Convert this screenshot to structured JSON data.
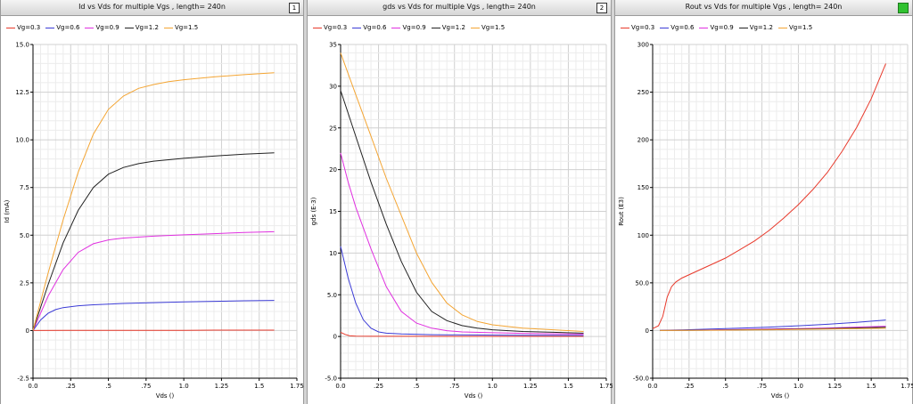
{
  "panels": [
    {
      "title": "Id vs Vds for multiple Vgs , length=  240n",
      "badge": "1",
      "badge_color": "white"
    },
    {
      "title": "gds vs Vds for multiple Vgs , length=  240n",
      "badge": "2",
      "badge_color": "white"
    },
    {
      "title": "Rout vs Vds for multiple Vgs , length=  240n",
      "badge": "",
      "badge_color": "green"
    }
  ],
  "legend_colors": {
    "Vg=0.3": "#e8392b",
    "Vg=0.6": "#3b3bd6",
    "Vg=0.9": "#e030e0",
    "Vg=1.2": "#222222",
    "Vg=1.5": "#f4a533"
  },
  "chart_data": [
    {
      "type": "line",
      "title": "Id vs Vds for multiple Vgs , length=  240n",
      "xlabel": "Vds ()",
      "ylabel": "Id (mA)",
      "xlim": [
        0,
        1.75
      ],
      "ylim": [
        -2.5,
        15.0
      ],
      "xticks": [
        0,
        0.25,
        0.5,
        0.75,
        1.0,
        1.25,
        1.5,
        1.75
      ],
      "xtick_labels": [
        "0.0",
        ".25",
        ".5",
        ".75",
        "1.0",
        "1.25",
        "1.5",
        "1.75"
      ],
      "yticks": [
        -2.5,
        0,
        2.5,
        5.0,
        7.5,
        10.0,
        12.5,
        15.0
      ],
      "ytick_labels": [
        "-2.5",
        "0",
        "2.5",
        "5.0",
        "7.5",
        "10.0",
        "12.5",
        "15.0"
      ],
      "grid": true,
      "legend_position": "top-left",
      "series": [
        {
          "name": "Vg=0.3",
          "color": "#e8392b",
          "x": [
            0,
            0.2,
            0.4,
            0.6,
            0.8,
            1.0,
            1.2,
            1.4,
            1.6
          ],
          "y": [
            0,
            0.01,
            0.01,
            0.01,
            0.01,
            0.01,
            0.02,
            0.02,
            0.02
          ]
        },
        {
          "name": "Vg=0.6",
          "color": "#3b3bd6",
          "x": [
            0,
            0.05,
            0.1,
            0.15,
            0.2,
            0.3,
            0.4,
            0.6,
            0.8,
            1.0,
            1.2,
            1.4,
            1.6
          ],
          "y": [
            0,
            0.55,
            0.9,
            1.1,
            1.2,
            1.3,
            1.35,
            1.42,
            1.46,
            1.5,
            1.53,
            1.56,
            1.58
          ]
        },
        {
          "name": "Vg=0.9",
          "color": "#e030e0",
          "x": [
            0,
            0.1,
            0.2,
            0.3,
            0.4,
            0.5,
            0.6,
            0.8,
            1.0,
            1.2,
            1.4,
            1.6
          ],
          "y": [
            0,
            1.8,
            3.2,
            4.1,
            4.55,
            4.75,
            4.85,
            4.95,
            5.02,
            5.08,
            5.14,
            5.18
          ]
        },
        {
          "name": "Vg=1.2",
          "color": "#222222",
          "x": [
            0,
            0.1,
            0.2,
            0.3,
            0.4,
            0.5,
            0.6,
            0.7,
            0.8,
            1.0,
            1.2,
            1.4,
            1.6
          ],
          "y": [
            0,
            2.4,
            4.6,
            6.3,
            7.5,
            8.2,
            8.55,
            8.75,
            8.88,
            9.03,
            9.15,
            9.25,
            9.32
          ]
        },
        {
          "name": "Vg=1.5",
          "color": "#f4a533",
          "x": [
            0,
            0.1,
            0.2,
            0.3,
            0.4,
            0.5,
            0.6,
            0.7,
            0.8,
            0.9,
            1.0,
            1.2,
            1.4,
            1.6
          ],
          "y": [
            0,
            3.0,
            5.8,
            8.3,
            10.3,
            11.6,
            12.3,
            12.7,
            12.9,
            13.05,
            13.15,
            13.3,
            13.42,
            13.52
          ]
        }
      ]
    },
    {
      "type": "line",
      "title": "gds vs Vds for multiple Vgs , length=  240n",
      "xlabel": "Vds ()",
      "ylabel": "gds (E-3)",
      "xlim": [
        0,
        1.75
      ],
      "ylim": [
        -5.0,
        35
      ],
      "xticks": [
        0,
        0.25,
        0.5,
        0.75,
        1.0,
        1.25,
        1.5,
        1.75
      ],
      "xtick_labels": [
        "0.0",
        ".25",
        ".5",
        ".75",
        "1.0",
        "1.25",
        "1.5",
        "1.75"
      ],
      "yticks": [
        -5.0,
        0,
        5.0,
        10,
        15,
        20,
        25,
        30,
        35
      ],
      "ytick_labels": [
        "-5.0",
        "0",
        "5.0",
        "10",
        "15",
        "20",
        "25",
        "30",
        "35"
      ],
      "grid": true,
      "legend_position": "top-left",
      "series": [
        {
          "name": "Vg=0.3",
          "color": "#e8392b",
          "x": [
            0,
            0.03,
            0.06,
            0.1,
            0.2,
            0.4,
            0.8,
            1.2,
            1.6
          ],
          "y": [
            0.5,
            0.25,
            0.08,
            0.03,
            0.02,
            0.02,
            0.01,
            0.01,
            0.01
          ]
        },
        {
          "name": "Vg=0.6",
          "color": "#3b3bd6",
          "x": [
            0,
            0.05,
            0.1,
            0.15,
            0.2,
            0.25,
            0.3,
            0.4,
            0.6,
            0.8,
            1.2,
            1.6
          ],
          "y": [
            10.8,
            7.0,
            4.0,
            2.0,
            1.0,
            0.55,
            0.4,
            0.3,
            0.22,
            0.18,
            0.15,
            0.12
          ]
        },
        {
          "name": "Vg=0.9",
          "color": "#e030e0",
          "x": [
            0,
            0.05,
            0.1,
            0.2,
            0.3,
            0.4,
            0.5,
            0.6,
            0.7,
            0.8,
            1.0,
            1.2,
            1.4,
            1.6
          ],
          "y": [
            22.0,
            18.5,
            15.5,
            10.5,
            6.0,
            3.0,
            1.6,
            1.0,
            0.7,
            0.55,
            0.45,
            0.38,
            0.32,
            0.28
          ]
        },
        {
          "name": "Vg=1.2",
          "color": "#222222",
          "x": [
            0,
            0.1,
            0.2,
            0.3,
            0.4,
            0.5,
            0.6,
            0.7,
            0.8,
            0.9,
            1.0,
            1.2,
            1.4,
            1.6
          ],
          "y": [
            29.5,
            24.0,
            18.5,
            13.5,
            9.0,
            5.3,
            3.0,
            1.9,
            1.3,
            1.0,
            0.8,
            0.6,
            0.5,
            0.4
          ]
        },
        {
          "name": "Vg=1.5",
          "color": "#f4a533",
          "x": [
            0,
            0.1,
            0.2,
            0.3,
            0.4,
            0.5,
            0.6,
            0.7,
            0.8,
            0.9,
            1.0,
            1.2,
            1.4,
            1.6
          ],
          "y": [
            34.0,
            29.0,
            24.0,
            19.0,
            14.5,
            10.0,
            6.5,
            4.0,
            2.6,
            1.8,
            1.4,
            1.0,
            0.8,
            0.6
          ]
        }
      ]
    },
    {
      "type": "line",
      "title": "Rout vs Vds for multiple Vgs , length=  240n",
      "xlabel": "Vds ()",
      "ylabel": "Rout (E3)",
      "xlim": [
        0,
        1.75
      ],
      "ylim": [
        -50.0,
        300
      ],
      "xticks": [
        0,
        0.25,
        0.5,
        0.75,
        1.0,
        1.25,
        1.5,
        1.75
      ],
      "xtick_labels": [
        "0.0",
        ".25",
        ".5",
        ".75",
        "1.0",
        "1.25",
        "1.5",
        "1.75"
      ],
      "yticks": [
        -50.0,
        0,
        50.0,
        100,
        150,
        200,
        250,
        300
      ],
      "ytick_labels": [
        "-50.0",
        "0",
        "50.0",
        "100",
        "150",
        "200",
        "250",
        "300"
      ],
      "grid": true,
      "legend_position": "top-left",
      "series": [
        {
          "name": "Vg=0.3",
          "color": "#e8392b",
          "x": [
            0,
            0.04,
            0.07,
            0.1,
            0.13,
            0.16,
            0.2,
            0.3,
            0.4,
            0.5,
            0.6,
            0.7,
            0.8,
            0.9,
            1.0,
            1.1,
            1.2,
            1.3,
            1.4,
            1.5,
            1.6
          ],
          "y": [
            2,
            5,
            15,
            35,
            46,
            51,
            55,
            62,
            69,
            76,
            85,
            94,
            105,
            118,
            132,
            148,
            166,
            188,
            213,
            243,
            280
          ]
        },
        {
          "name": "Vg=0.6",
          "color": "#3b3bd6",
          "x": [
            0.05,
            0.2,
            0.4,
            0.6,
            0.8,
            1.0,
            1.2,
            1.4,
            1.6
          ],
          "y": [
            0.1,
            0.7,
            1.5,
            2.5,
            3.6,
            5.0,
            6.6,
            8.6,
            11.0
          ]
        },
        {
          "name": "Vg=0.9",
          "color": "#e030e0",
          "x": [
            0.05,
            0.4,
            0.8,
            1.2,
            1.6
          ],
          "y": [
            0.05,
            0.6,
            1.5,
            2.6,
            4.5
          ]
        },
        {
          "name": "Vg=1.2",
          "color": "#222222",
          "x": [
            0.05,
            0.4,
            0.8,
            1.2,
            1.6
          ],
          "y": [
            0.03,
            0.4,
            1.1,
            2.0,
            3.5
          ]
        },
        {
          "name": "Vg=1.5",
          "color": "#f4a533",
          "x": [
            0.05,
            0.4,
            0.8,
            1.2,
            1.6
          ],
          "y": [
            0.02,
            0.3,
            0.8,
            1.5,
            2.4
          ]
        }
      ]
    }
  ]
}
